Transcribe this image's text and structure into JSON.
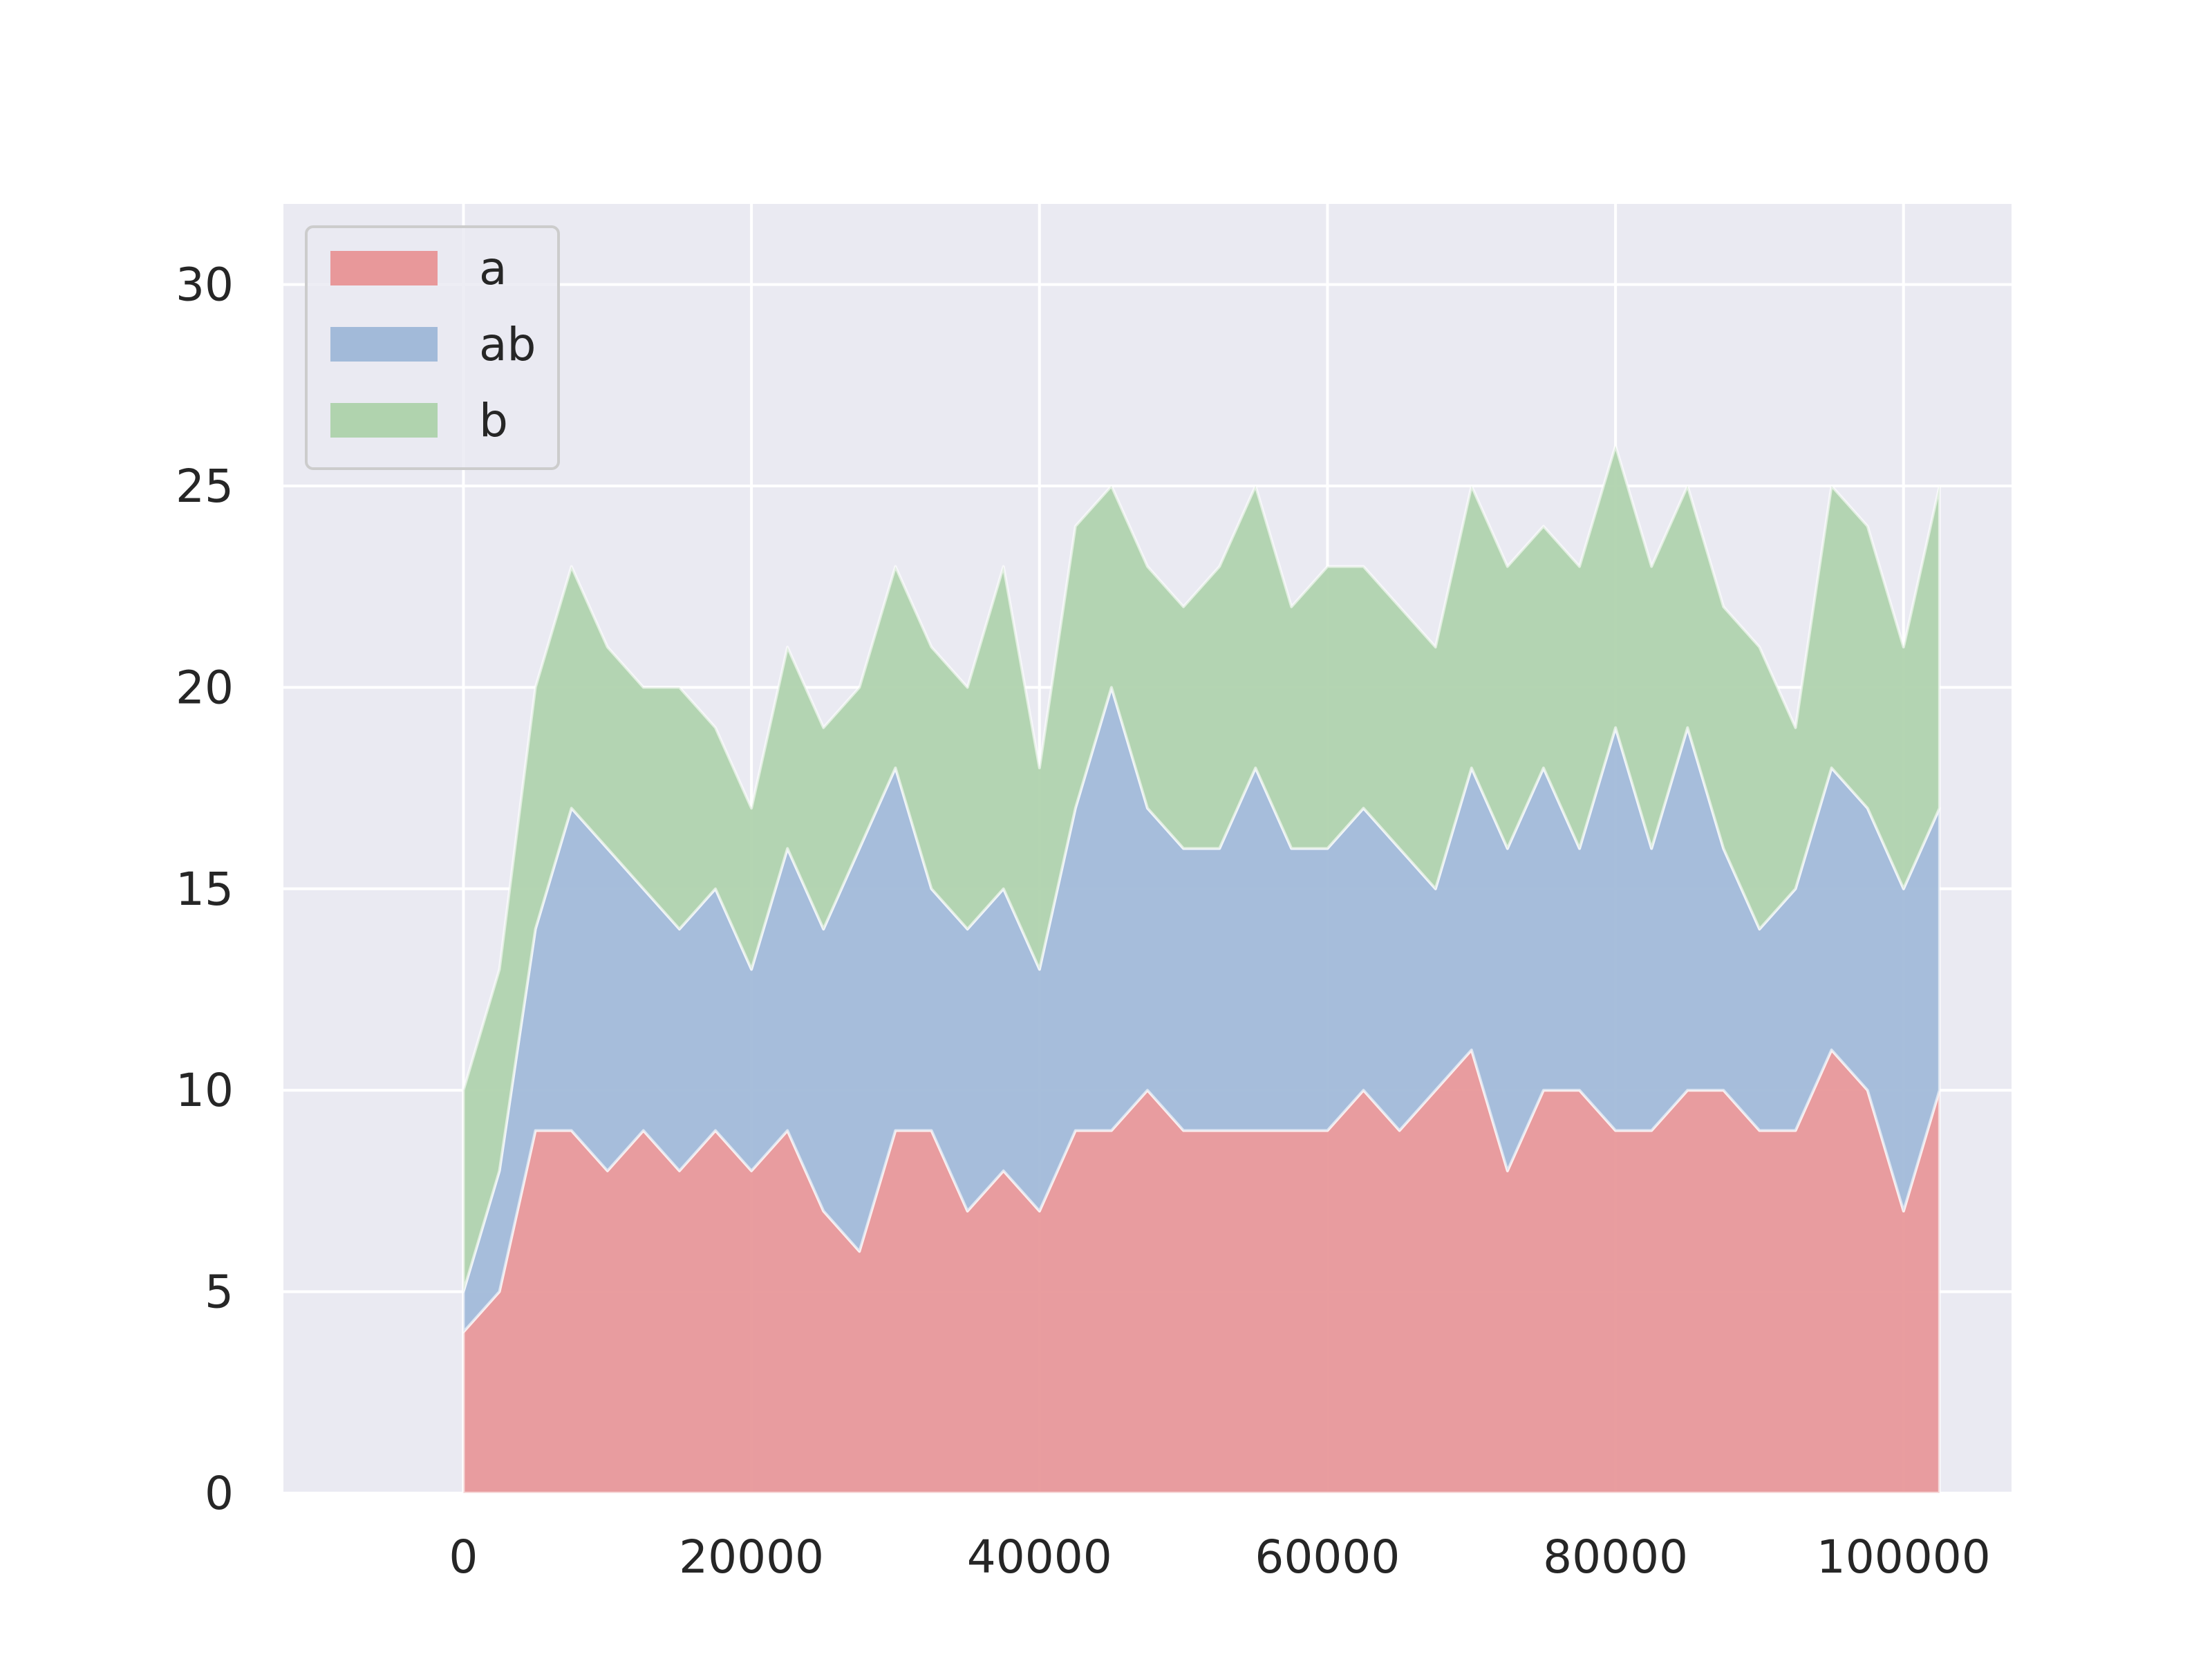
{
  "chart_data": {
    "type": "area",
    "stacked": true,
    "x": [
      0,
      2500,
      5000,
      7500,
      10000,
      12500,
      15000,
      17500,
      20000,
      22500,
      25000,
      27500,
      30000,
      32500,
      35000,
      37500,
      40000,
      42500,
      45000,
      47500,
      50000,
      52500,
      55000,
      57500,
      60000,
      62500,
      65000,
      67500,
      70000,
      72500,
      75000,
      77500,
      80000,
      82500,
      85000,
      87500,
      90000,
      92500,
      95000,
      97500,
      100000,
      102500
    ],
    "series": [
      {
        "name": "a",
        "color": "#e8989a",
        "values": [
          4,
          5,
          9,
          9,
          8,
          9,
          8,
          9,
          8,
          9,
          7,
          6,
          9,
          9,
          7,
          8,
          7,
          9,
          9,
          10,
          9,
          9,
          9,
          9,
          9,
          10,
          9,
          10,
          11,
          8,
          10,
          10,
          9,
          9,
          10,
          10,
          9,
          9,
          11,
          10,
          7,
          10
        ]
      },
      {
        "name": "ab",
        "color": "#a2bad9",
        "values": [
          1,
          3,
          5,
          8,
          8,
          6,
          6,
          6,
          5,
          7,
          7,
          10,
          9,
          6,
          7,
          7,
          6,
          8,
          11,
          7,
          7,
          7,
          9,
          7,
          7,
          7,
          7,
          5,
          7,
          8,
          8,
          6,
          10,
          7,
          9,
          6,
          5,
          6,
          7,
          7,
          8,
          7
        ]
      },
      {
        "name": "b",
        "color": "#b0d3ae",
        "values": [
          5,
          5,
          6,
          6,
          5,
          5,
          6,
          4,
          4,
          5,
          5,
          4,
          5,
          6,
          6,
          8,
          5,
          7,
          5,
          6,
          6,
          7,
          7,
          6,
          7,
          6,
          6,
          6,
          7,
          7,
          6,
          7,
          7,
          7,
          6,
          6,
          7,
          4,
          7,
          7,
          6,
          8
        ]
      }
    ],
    "xlim": [
      -12500,
      107500
    ],
    "ylim": [
      0,
      32
    ],
    "xticks": [
      "0",
      "20000",
      "40000",
      "60000",
      "80000",
      "100000"
    ],
    "yticks": [
      "0",
      "5",
      "10",
      "15",
      "20",
      "25",
      "30"
    ],
    "title": "",
    "xlabel": "",
    "ylabel": "",
    "grid": true,
    "legend_position": "top-left",
    "background": "#eaeaf2",
    "grid_color": "#ffffff"
  }
}
